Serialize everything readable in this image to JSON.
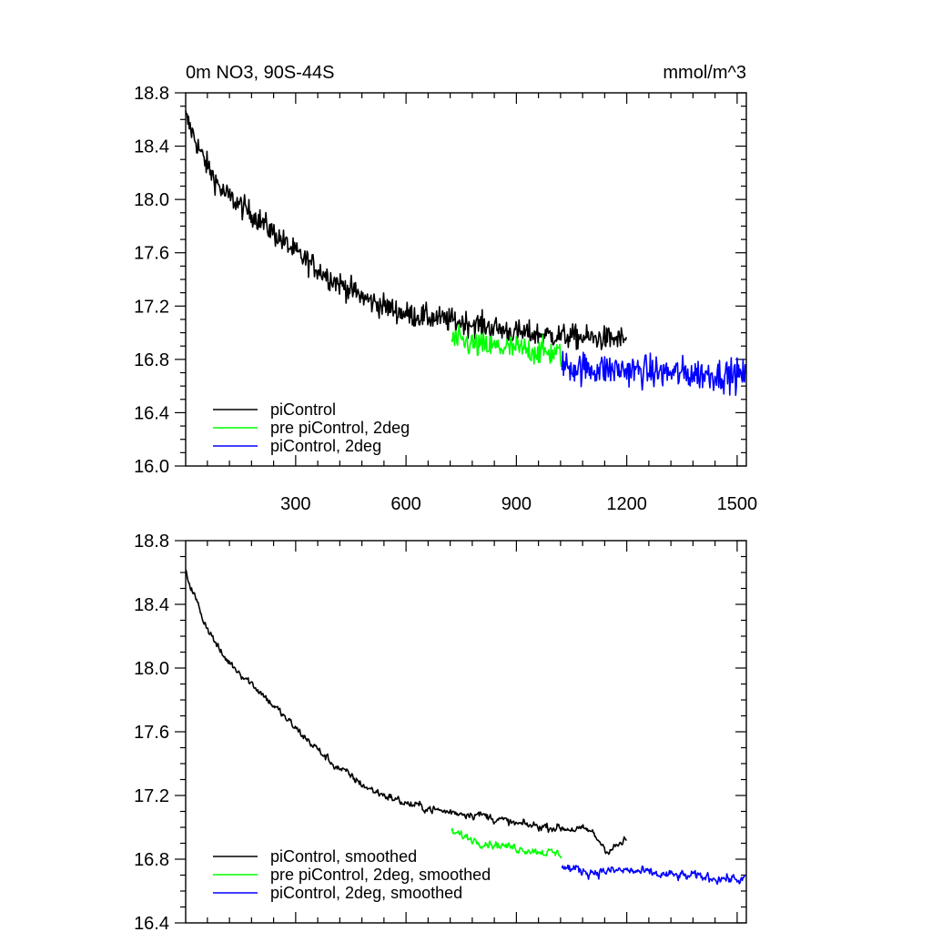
{
  "colors": {
    "piControl": "#000000",
    "pre_piControl_2deg": "#00ff00",
    "piControl_2deg": "#0000ff"
  },
  "chart_data": [
    {
      "type": "line",
      "title": "0m NO3, 90S-44S",
      "units": "mmol/m^3",
      "xlim": [
        1,
        1525
      ],
      "ylim": [
        16.0,
        18.8
      ],
      "x_ticks": [
        300,
        600,
        900,
        1200,
        1500
      ],
      "x_tick_labels": [
        "300",
        "600",
        "900",
        "1200",
        "1500"
      ],
      "y_ticks": [
        16.0,
        16.4,
        16.8,
        17.2,
        17.6,
        18.0,
        18.4,
        18.8
      ],
      "y_tick_labels": [
        "16.0",
        "16.4",
        "16.8",
        "17.2",
        "17.6",
        "18.0",
        "18.4",
        "18.8"
      ],
      "legend_position": "bottom-left",
      "series": [
        {
          "name": "piControl",
          "color": "#000000",
          "x_range": [
            1,
            1200
          ],
          "trend": [
            [
              1,
              18.62
            ],
            [
              50,
              18.3
            ],
            [
              100,
              18.06
            ],
            [
              200,
              17.85
            ],
            [
              300,
              17.6
            ],
            [
              400,
              17.4
            ],
            [
              500,
              17.24
            ],
            [
              600,
              17.14
            ],
            [
              700,
              17.1
            ],
            [
              800,
              17.06
            ],
            [
              900,
              17.0
            ],
            [
              1000,
              16.98
            ],
            [
              1100,
              16.96
            ],
            [
              1200,
              16.95
            ]
          ],
          "noise_amplitude": 0.09
        },
        {
          "name": "pre piControl, 2deg",
          "color": "#00ff00",
          "x_range": [
            724,
            1023
          ],
          "trend": [
            [
              724,
              16.95
            ],
            [
              800,
              16.9
            ],
            [
              900,
              16.88
            ],
            [
              1023,
              16.84
            ]
          ],
          "noise_amplitude": 0.1
        },
        {
          "name": "piControl, 2deg",
          "color": "#0000ff",
          "x_range": [
            1024,
            1523
          ],
          "trend": [
            [
              1024,
              16.75
            ],
            [
              1100,
              16.73
            ],
            [
              1200,
              16.72
            ],
            [
              1300,
              16.7
            ],
            [
              1400,
              16.69
            ],
            [
              1523,
              16.68
            ]
          ],
          "noise_amplitude": 0.12
        }
      ]
    },
    {
      "type": "line",
      "xlim": [
        1,
        1525
      ],
      "ylim": [
        16.4,
        18.8
      ],
      "x_ticks": [
        300,
        600,
        900,
        1200,
        1500
      ],
      "y_ticks": [
        16.4,
        16.8,
        17.2,
        17.6,
        18.0,
        18.4,
        18.8
      ],
      "y_tick_labels": [
        "16.4",
        "16.8",
        "17.2",
        "17.6",
        "18.0",
        "18.4",
        "18.8"
      ],
      "legend_position": "bottom-left",
      "series": [
        {
          "name": "piControl, smoothed",
          "color": "#000000",
          "x_range": [
            1,
            1200
          ],
          "trend": [
            [
              1,
              18.6
            ],
            [
              50,
              18.3
            ],
            [
              100,
              18.08
            ],
            [
              200,
              17.86
            ],
            [
              300,
              17.62
            ],
            [
              400,
              17.4
            ],
            [
              500,
              17.24
            ],
            [
              600,
              17.15
            ],
            [
              700,
              17.1
            ],
            [
              800,
              17.08
            ],
            [
              900,
              17.02
            ],
            [
              1000,
              17.0
            ],
            [
              1100,
              16.98
            ],
            [
              1150,
              16.85
            ],
            [
              1200,
              16.92
            ]
          ],
          "noise_amplitude": 0.05
        },
        {
          "name": "pre piControl, 2deg, smoothed",
          "color": "#00ff00",
          "x_range": [
            724,
            1023
          ],
          "trend": [
            [
              724,
              16.97
            ],
            [
              800,
              16.91
            ],
            [
              900,
              16.87
            ],
            [
              1023,
              16.83
            ]
          ],
          "noise_amplitude": 0.05
        },
        {
          "name": "piControl, 2deg, smoothed",
          "color": "#0000ff",
          "x_range": [
            1024,
            1523
          ],
          "trend": [
            [
              1024,
              16.75
            ],
            [
              1100,
              16.72
            ],
            [
              1200,
              16.73
            ],
            [
              1300,
              16.7
            ],
            [
              1400,
              16.69
            ],
            [
              1523,
              16.67
            ]
          ],
          "noise_amplitude": 0.06
        }
      ]
    }
  ]
}
